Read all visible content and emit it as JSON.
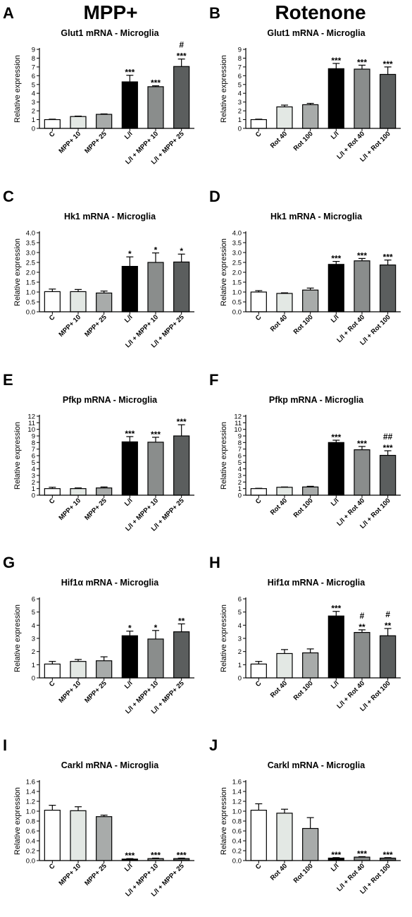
{
  "headers": {
    "left": "MPP+",
    "right": "Rotenone"
  },
  "chart_data": [
    {
      "panel": "A",
      "type": "bar",
      "title": "Glut1 mRNA - Microglia",
      "ylabel": "Relative expression",
      "ylim": [
        0,
        9
      ],
      "ytick_step": 1,
      "ytick_decimals": 0,
      "categories": [
        "C",
        "MPP+ 10",
        "MPP+ 25",
        "L/I",
        "L/I + MPP+ 10",
        "L/I + MPP+ 25"
      ],
      "values": [
        1.0,
        1.35,
        1.6,
        5.3,
        4.75,
        7.05
      ],
      "errors": [
        0.05,
        0.05,
        0.05,
        0.75,
        0.1,
        0.85
      ],
      "colors": [
        "#ffffff",
        "#e3e8e4",
        "#a8abaa",
        "#000000",
        "#8a8d8c",
        "#5b5e5e"
      ],
      "annotations": [
        "",
        "",
        "",
        "***",
        "***",
        "***\n#"
      ]
    },
    {
      "panel": "B",
      "type": "bar",
      "title": "Glut1 mRNA - Microglia",
      "ylabel": "Relative expression",
      "ylim": [
        0,
        9
      ],
      "ytick_step": 1,
      "ytick_decimals": 0,
      "categories": [
        "C",
        "Rot 40",
        "Rot 100",
        "L/I",
        "L/I + Rot 40",
        "L/I + Rot 100"
      ],
      "values": [
        1.0,
        2.45,
        2.7,
        6.8,
        6.75,
        6.15
      ],
      "errors": [
        0.05,
        0.2,
        0.15,
        0.6,
        0.45,
        0.85
      ],
      "colors": [
        "#ffffff",
        "#e3e8e4",
        "#a8abaa",
        "#000000",
        "#8a8d8c",
        "#5b5e5e"
      ],
      "annotations": [
        "",
        "",
        "",
        "***",
        "***",
        "***"
      ]
    },
    {
      "panel": "C",
      "type": "bar",
      "title": "Hk1 mRNA - Microglia",
      "ylabel": "Relative expression",
      "ylim": [
        0,
        4.0
      ],
      "ytick_step": 0.5,
      "ytick_decimals": 1,
      "categories": [
        "C",
        "MPP+ 10",
        "MPP+ 25",
        "L/I",
        "L/I + MPP+ 10",
        "L/I + MPP+ 25"
      ],
      "values": [
        1.02,
        1.02,
        0.95,
        2.3,
        2.5,
        2.52
      ],
      "errors": [
        0.13,
        0.11,
        0.1,
        0.48,
        0.48,
        0.4
      ],
      "colors": [
        "#ffffff",
        "#e3e8e4",
        "#a8abaa",
        "#000000",
        "#8a8d8c",
        "#5b5e5e"
      ],
      "annotations": [
        "",
        "",
        "",
        "*",
        "*",
        "*"
      ]
    },
    {
      "panel": "D",
      "type": "bar",
      "title": "Hk1 mRNA - Microglia",
      "ylabel": "Relative expression",
      "ylim": [
        0,
        4.0
      ],
      "ytick_step": 0.5,
      "ytick_decimals": 1,
      "categories": [
        "C",
        "Rot 40",
        "Rot 100",
        "L/I",
        "L/I + Rot 40",
        "L/I + Rot 100"
      ],
      "values": [
        1.0,
        0.93,
        1.1,
        2.4,
        2.58,
        2.37
      ],
      "errors": [
        0.07,
        0.03,
        0.1,
        0.15,
        0.12,
        0.25
      ],
      "colors": [
        "#ffffff",
        "#e3e8e4",
        "#a8abaa",
        "#000000",
        "#8a8d8c",
        "#5b5e5e"
      ],
      "annotations": [
        "",
        "",
        "",
        "***",
        "***",
        "***"
      ]
    },
    {
      "panel": "E",
      "type": "bar",
      "title": "Pfkp mRNA - Microglia",
      "ylabel": "Relative expression",
      "ylim": [
        0,
        12
      ],
      "ytick_step": 1,
      "ytick_decimals": 0,
      "categories": [
        "C",
        "MPP+ 10",
        "MPP+ 25",
        "L/I",
        "L/I + MPP+ 10",
        "L/I + MPP+ 25"
      ],
      "values": [
        1.0,
        1.0,
        1.1,
        8.1,
        8.05,
        9.0
      ],
      "errors": [
        0.2,
        0.1,
        0.15,
        0.8,
        0.75,
        1.7
      ],
      "colors": [
        "#ffffff",
        "#e3e8e4",
        "#a8abaa",
        "#000000",
        "#8a8d8c",
        "#5b5e5e"
      ],
      "annotations": [
        "",
        "",
        "",
        "***",
        "***",
        "***"
      ]
    },
    {
      "panel": "F",
      "type": "bar",
      "title": "Pfkp mRNA - Microglia",
      "ylabel": "Relative expression",
      "ylim": [
        0,
        12
      ],
      "ytick_step": 1,
      "ytick_decimals": 0,
      "categories": [
        "C",
        "Rot 40",
        "Rot 100",
        "L/I",
        "L/I + Rot 40",
        "L/I + Rot 100"
      ],
      "values": [
        1.0,
        1.2,
        1.25,
        8.0,
        6.9,
        6.05
      ],
      "errors": [
        0.05,
        0.05,
        0.1,
        0.35,
        0.5,
        0.7
      ],
      "colors": [
        "#ffffff",
        "#e3e8e4",
        "#a8abaa",
        "#000000",
        "#8a8d8c",
        "#5b5e5e"
      ],
      "annotations": [
        "",
        "",
        "",
        "***",
        "***",
        "***\n##"
      ]
    },
    {
      "panel": "G",
      "type": "bar",
      "title": "Hif1α mRNA - Microglia",
      "ylabel": "Relative expression",
      "ylim": [
        0,
        6
      ],
      "ytick_step": 1,
      "ytick_decimals": 0,
      "categories": [
        "C",
        "MPP+ 10",
        "MPP+ 25",
        "L/I",
        "L/I + MPP+ 10",
        "L/I + MPP+ 25"
      ],
      "values": [
        1.05,
        1.25,
        1.3,
        3.2,
        2.95,
        3.5
      ],
      "errors": [
        0.2,
        0.15,
        0.3,
        0.35,
        0.65,
        0.6
      ],
      "colors": [
        "#ffffff",
        "#e3e8e4",
        "#a8abaa",
        "#000000",
        "#8a8d8c",
        "#5b5e5e"
      ],
      "annotations": [
        "",
        "",
        "",
        "*",
        "*",
        "**"
      ]
    },
    {
      "panel": "H",
      "type": "bar",
      "title": "Hif1α mRNA - Microglia",
      "ylabel": "Relative expression",
      "ylim": [
        0,
        6
      ],
      "ytick_step": 1,
      "ytick_decimals": 0,
      "categories": [
        "C",
        "Rot 40",
        "Rot 100",
        "L/I",
        "L/I + Rot 40",
        "L/I + Rot 100"
      ],
      "values": [
        1.05,
        1.85,
        1.9,
        4.7,
        3.45,
        3.2
      ],
      "errors": [
        0.2,
        0.3,
        0.3,
        0.35,
        0.2,
        0.55
      ],
      "colors": [
        "#ffffff",
        "#e3e8e4",
        "#a8abaa",
        "#000000",
        "#8a8d8c",
        "#5b5e5e"
      ],
      "annotations": [
        "",
        "",
        "",
        "***",
        "**\n#",
        "**\n#"
      ]
    },
    {
      "panel": "I",
      "type": "bar",
      "title": "Carkl mRNA - Microglia",
      "ylabel": "Relative expression",
      "ylim": [
        0,
        1.6
      ],
      "ytick_step": 0.2,
      "ytick_decimals": 1,
      "categories": [
        "C",
        "MPP+ 10",
        "MPP+ 25",
        "L/I",
        "L/I + MPP+ 10",
        "L/I + MPP+ 25"
      ],
      "values": [
        1.02,
        1.01,
        0.89,
        0.03,
        0.04,
        0.04
      ],
      "errors": [
        0.1,
        0.08,
        0.03,
        0.01,
        0.01,
        0.01
      ],
      "colors": [
        "#ffffff",
        "#e3e8e4",
        "#a8abaa",
        "#000000",
        "#8a8d8c",
        "#5b5e5e"
      ],
      "annotations": [
        "",
        "",
        "",
        "***",
        "***",
        "***"
      ]
    },
    {
      "panel": "J",
      "type": "bar",
      "title": "Carkl mRNA - Microglia",
      "ylabel": "Relative expression",
      "ylim": [
        0,
        1.6
      ],
      "ytick_step": 0.2,
      "ytick_decimals": 1,
      "categories": [
        "C",
        "Rot 40",
        "Rot 100",
        "L/I",
        "L/I + Rot 40",
        "L/I + Rot 100"
      ],
      "values": [
        1.02,
        0.96,
        0.65,
        0.05,
        0.07,
        0.05
      ],
      "errors": [
        0.13,
        0.08,
        0.22,
        0.01,
        0.01,
        0.01
      ],
      "colors": [
        "#ffffff",
        "#e3e8e4",
        "#a8abaa",
        "#000000",
        "#8a8d8c",
        "#5b5e5e"
      ],
      "annotations": [
        "",
        "",
        "",
        "***",
        "***",
        "***"
      ]
    }
  ]
}
